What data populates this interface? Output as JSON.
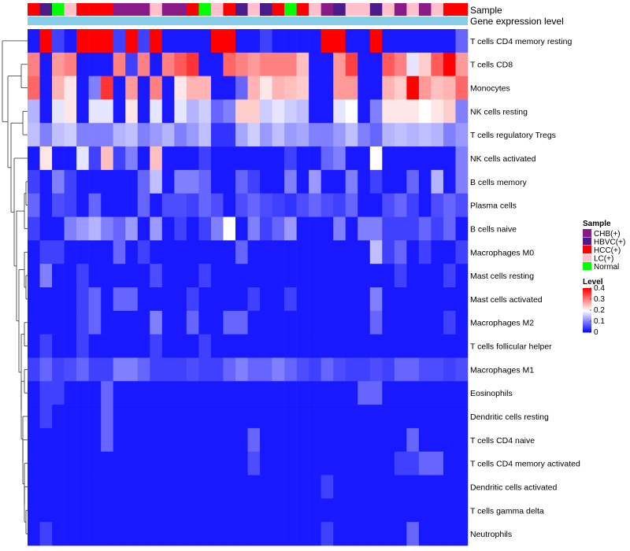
{
  "chart_data": {
    "type": "heatmap",
    "title": "",
    "annotation_track_labels": [
      "Sample",
      "Gene expression level"
    ],
    "row_labels": [
      "T cells CD4 memory resting",
      "T cells CD8",
      "Monocytes",
      "NK cells resting",
      "T cells regulatory  Tregs",
      "NK cells activated",
      "B cells memory",
      "Plasma cells",
      "B cells naive",
      "Macrophages M0",
      "Mast cells resting",
      "Mast cells activated",
      "Macrophages M2",
      "T cells follicular helper",
      "Macrophages M1",
      "Eosinophils",
      "Dendritic cells resting",
      "T cells CD4 naive",
      "T cells CD4 memory activated",
      "Dendritic cells activated",
      "T cells gamma delta",
      "Neutrophils"
    ],
    "sample_groups": [
      "HCC(+)",
      "HBVC(+)",
      "Normal",
      "LC(+)",
      "HCC(+)",
      "HCC(+)",
      "HCC(+)",
      "CHB(+)",
      "CHB(+)",
      "CHB(+)",
      "LC(+)",
      "CHB(+)",
      "CHB(+)",
      "HCC(+)",
      "Normal",
      "LC(+)",
      "HCC(+)",
      "HBVC(+)",
      "LC(+)",
      "HBVC(+)",
      "HCC(+)",
      "Normal",
      "HCC(+)",
      "LC(+)",
      "CHB(+)",
      "HBVC(+)",
      "LC(+)",
      "LC(+)",
      "HBVC(+)",
      "LC(+)",
      "CHB(+)",
      "LC(+)",
      "CHB(+)",
      "LC(+)",
      "HCC(+)",
      "HCC(+)"
    ],
    "values": [
      [
        0.02,
        0.4,
        0.05,
        0.02,
        0.4,
        0.4,
        0.4,
        0.05,
        0.4,
        0.05,
        0.4,
        0.02,
        0.02,
        0.02,
        0.02,
        0.4,
        0.4,
        0.02,
        0.02,
        0.05,
        0.02,
        0.02,
        0.02,
        0.02,
        0.4,
        0.4,
        0.02,
        0.02,
        0.4,
        0.02,
        0.02,
        0.02,
        0.02,
        0.02,
        0.02,
        0.08
      ],
      [
        0.3,
        0.02,
        0.28,
        0.3,
        0.02,
        0.02,
        0.02,
        0.3,
        0.05,
        0.3,
        0.02,
        0.3,
        0.33,
        0.36,
        0.02,
        0.02,
        0.32,
        0.3,
        0.28,
        0.3,
        0.3,
        0.3,
        0.25,
        0.02,
        0.02,
        0.28,
        0.35,
        0.02,
        0.02,
        0.33,
        0.3,
        0.18,
        0.24,
        0.33,
        0.4,
        0.28
      ],
      [
        0.32,
        0.02,
        0.26,
        0.22,
        0.02,
        0.1,
        0.36,
        0.02,
        0.28,
        0.02,
        0.3,
        0.02,
        0.22,
        0.26,
        0.26,
        0.02,
        0.02,
        0.08,
        0.26,
        0.22,
        0.26,
        0.25,
        0.24,
        0.02,
        0.02,
        0.28,
        0.28,
        0.02,
        0.02,
        0.26,
        0.24,
        0.4,
        0.28,
        0.25,
        0.26,
        0.32
      ],
      [
        0.14,
        0.02,
        0.18,
        0.22,
        0.02,
        0.18,
        0.18,
        0.02,
        0.22,
        0.02,
        0.18,
        0.02,
        0.18,
        0.14,
        0.16,
        0.08,
        0.1,
        0.24,
        0.24,
        0.16,
        0.18,
        0.16,
        0.15,
        0.02,
        0.02,
        0.18,
        0.2,
        0.02,
        0.1,
        0.22,
        0.22,
        0.22,
        0.2,
        0.22,
        0.24,
        0.1
      ],
      [
        0.15,
        0.1,
        0.15,
        0.16,
        0.1,
        0.1,
        0.1,
        0.14,
        0.15,
        0.1,
        0.12,
        0.14,
        0.1,
        0.12,
        0.15,
        0.04,
        0.04,
        0.13,
        0.16,
        0.12,
        0.15,
        0.12,
        0.13,
        0.1,
        0.1,
        0.12,
        0.15,
        0.1,
        0.08,
        0.14,
        0.15,
        0.14,
        0.15,
        0.14,
        0.1,
        0.12
      ],
      [
        0.02,
        0.22,
        0.02,
        0.02,
        0.18,
        0.05,
        0.25,
        0.05,
        0.1,
        0.02,
        0.25,
        0.02,
        0.02,
        0.02,
        0.05,
        0.02,
        0.02,
        0.02,
        0.02,
        0.02,
        0.02,
        0.05,
        0.02,
        0.02,
        0.08,
        0.1,
        0.02,
        0.02,
        0.2,
        0.02,
        0.02,
        0.02,
        0.02,
        0.02,
        0.02,
        0.1
      ],
      [
        0.05,
        0.02,
        0.1,
        0.05,
        0.02,
        0.02,
        0.02,
        0.02,
        0.02,
        0.08,
        0.15,
        0.02,
        0.1,
        0.1,
        0.08,
        0.02,
        0.02,
        0.08,
        0.05,
        0.02,
        0.02,
        0.1,
        0.02,
        0.12,
        0.02,
        0.02,
        0.1,
        0.02,
        0.05,
        0.02,
        0.02,
        0.08,
        0.02,
        0.14,
        0.02,
        0.1
      ],
      [
        0.08,
        0.02,
        0.06,
        0.05,
        0.02,
        0.08,
        0.02,
        0.02,
        0.02,
        0.08,
        0.02,
        0.06,
        0.06,
        0.05,
        0.08,
        0.06,
        0.02,
        0.06,
        0.08,
        0.06,
        0.05,
        0.04,
        0.06,
        0.08,
        0.06,
        0.05,
        0.08,
        0.02,
        0.02,
        0.06,
        0.08,
        0.05,
        0.02,
        0.06,
        0.08,
        0.06
      ],
      [
        0.05,
        0.02,
        0.02,
        0.1,
        0.12,
        0.14,
        0.1,
        0.08,
        0.12,
        0.02,
        0.12,
        0.02,
        0.05,
        0.02,
        0.05,
        0.1,
        0.2,
        0.02,
        0.1,
        0.05,
        0.08,
        0.12,
        0.02,
        0.02,
        0.02,
        0.1,
        0.02,
        0.1,
        0.1,
        0.05,
        0.05,
        0.05,
        0.08,
        0.05,
        0.08,
        0.02
      ],
      [
        0.02,
        0.05,
        0.05,
        0.02,
        0.02,
        0.02,
        0.02,
        0.08,
        0.02,
        0.05,
        0.02,
        0.02,
        0.02,
        0.02,
        0.02,
        0.02,
        0.02,
        0.08,
        0.02,
        0.02,
        0.02,
        0.02,
        0.02,
        0.02,
        0.02,
        0.02,
        0.02,
        0.02,
        0.15,
        0.05,
        0.08,
        0.02,
        0.05,
        0.02,
        0.02,
        0.05
      ],
      [
        0.02,
        0.1,
        0.02,
        0.02,
        0.05,
        0.02,
        0.02,
        0.02,
        0.02,
        0.02,
        0.06,
        0.02,
        0.02,
        0.02,
        0.05,
        0.02,
        0.02,
        0.02,
        0.02,
        0.02,
        0.02,
        0.02,
        0.02,
        0.02,
        0.02,
        0.02,
        0.02,
        0.02,
        0.02,
        0.02,
        0.05,
        0.02,
        0.02,
        0.02,
        0.05,
        0.02
      ],
      [
        0.02,
        0.02,
        0.02,
        0.02,
        0.05,
        0.08,
        0.02,
        0.08,
        0.08,
        0.02,
        0.02,
        0.02,
        0.02,
        0.05,
        0.02,
        0.02,
        0.02,
        0.02,
        0.05,
        0.02,
        0.02,
        0.05,
        0.02,
        0.02,
        0.02,
        0.02,
        0.02,
        0.02,
        0.1,
        0.02,
        0.02,
        0.02,
        0.02,
        0.02,
        0.02,
        0.02
      ],
      [
        0.02,
        0.02,
        0.02,
        0.02,
        0.05,
        0.08,
        0.02,
        0.02,
        0.02,
        0.02,
        0.1,
        0.02,
        0.02,
        0.08,
        0.02,
        0.02,
        0.08,
        0.08,
        0.02,
        0.02,
        0.02,
        0.02,
        0.02,
        0.02,
        0.02,
        0.02,
        0.02,
        0.02,
        0.08,
        0.02,
        0.02,
        0.02,
        0.02,
        0.02,
        0.05,
        0.02
      ],
      [
        0.02,
        0.05,
        0.02,
        0.02,
        0.05,
        0.02,
        0.02,
        0.02,
        0.02,
        0.02,
        0.05,
        0.02,
        0.02,
        0.02,
        0.05,
        0.02,
        0.02,
        0.02,
        0.02,
        0.02,
        0.02,
        0.02,
        0.02,
        0.02,
        0.02,
        0.02,
        0.02,
        0.02,
        0.02,
        0.02,
        0.02,
        0.02,
        0.02,
        0.02,
        0.02,
        0.02
      ],
      [
        0.05,
        0.08,
        0.05,
        0.06,
        0.08,
        0.05,
        0.05,
        0.1,
        0.1,
        0.08,
        0.05,
        0.05,
        0.05,
        0.06,
        0.05,
        0.05,
        0.08,
        0.1,
        0.08,
        0.08,
        0.1,
        0.08,
        0.06,
        0.05,
        0.08,
        0.06,
        0.05,
        0.05,
        0.06,
        0.05,
        0.08,
        0.08,
        0.06,
        0.06,
        0.05,
        0.06
      ],
      [
        0.02,
        0.05,
        0.05,
        0.02,
        0.02,
        0.02,
        0.08,
        0.02,
        0.02,
        0.02,
        0.02,
        0.02,
        0.02,
        0.02,
        0.02,
        0.02,
        0.02,
        0.02,
        0.02,
        0.02,
        0.02,
        0.02,
        0.02,
        0.02,
        0.02,
        0.02,
        0.02,
        0.08,
        0.08,
        0.02,
        0.02,
        0.02,
        0.02,
        0.02,
        0.02,
        0.02
      ],
      [
        0.02,
        0.05,
        0.02,
        0.02,
        0.02,
        0.02,
        0.08,
        0.02,
        0.02,
        0.02,
        0.02,
        0.02,
        0.02,
        0.02,
        0.02,
        0.02,
        0.02,
        0.02,
        0.02,
        0.02,
        0.02,
        0.02,
        0.02,
        0.02,
        0.02,
        0.02,
        0.02,
        0.02,
        0.02,
        0.02,
        0.02,
        0.02,
        0.02,
        0.02,
        0.02,
        0.02
      ],
      [
        0.02,
        0.02,
        0.02,
        0.02,
        0.02,
        0.02,
        0.08,
        0.02,
        0.02,
        0.02,
        0.02,
        0.02,
        0.02,
        0.02,
        0.02,
        0.02,
        0.02,
        0.02,
        0.08,
        0.02,
        0.02,
        0.02,
        0.02,
        0.02,
        0.02,
        0.02,
        0.02,
        0.02,
        0.02,
        0.02,
        0.02,
        0.08,
        0.02,
        0.02,
        0.02,
        0.02
      ],
      [
        0.02,
        0.02,
        0.02,
        0.02,
        0.02,
        0.02,
        0.02,
        0.02,
        0.02,
        0.02,
        0.02,
        0.02,
        0.02,
        0.02,
        0.02,
        0.02,
        0.02,
        0.02,
        0.06,
        0.02,
        0.02,
        0.02,
        0.02,
        0.02,
        0.02,
        0.02,
        0.02,
        0.02,
        0.02,
        0.02,
        0.05,
        0.05,
        0.08,
        0.08,
        0.02,
        0.02
      ],
      [
        0.02,
        0.02,
        0.02,
        0.02,
        0.02,
        0.02,
        0.02,
        0.02,
        0.02,
        0.02,
        0.02,
        0.02,
        0.02,
        0.02,
        0.02,
        0.02,
        0.02,
        0.02,
        0.02,
        0.02,
        0.02,
        0.02,
        0.02,
        0.02,
        0.05,
        0.02,
        0.02,
        0.02,
        0.02,
        0.02,
        0.02,
        0.02,
        0.02,
        0.02,
        0.02,
        0.02
      ],
      [
        0.02,
        0.02,
        0.02,
        0.02,
        0.02,
        0.02,
        0.02,
        0.02,
        0.02,
        0.02,
        0.02,
        0.02,
        0.02,
        0.02,
        0.02,
        0.02,
        0.02,
        0.02,
        0.02,
        0.02,
        0.02,
        0.02,
        0.02,
        0.02,
        0.02,
        0.02,
        0.02,
        0.02,
        0.02,
        0.02,
        0.02,
        0.02,
        0.02,
        0.02,
        0.02,
        0.02
      ],
      [
        0.02,
        0.05,
        0.02,
        0.02,
        0.02,
        0.02,
        0.02,
        0.02,
        0.02,
        0.02,
        0.02,
        0.02,
        0.02,
        0.02,
        0.02,
        0.02,
        0.02,
        0.02,
        0.02,
        0.02,
        0.02,
        0.02,
        0.02,
        0.02,
        0.05,
        0.02,
        0.02,
        0.02,
        0.02,
        0.02,
        0.02,
        0.08,
        0.02,
        0.02,
        0.02,
        0.02
      ]
    ],
    "color_scale": {
      "stops": [
        0,
        0.2,
        0.4
      ],
      "colors": [
        "#0000ff",
        "#ffffff",
        "#ff0000"
      ]
    },
    "legend": {
      "sample": {
        "title": "Sample",
        "entries": [
          {
            "label": "CHB(+)",
            "color": "#8b1a89"
          },
          {
            "label": "HBVC(+)",
            "color": "#4b1a8b"
          },
          {
            "label": "HCC(+)",
            "color": "#ff0000"
          },
          {
            "label": "LC(+)",
            "color": "#ffc0cb"
          },
          {
            "label": "Normal",
            "color": "#00ff00"
          }
        ]
      },
      "level": {
        "title": "Level",
        "ticks": [
          "0.4",
          "0.3",
          "0.2",
          "0.1",
          "0"
        ],
        "tick_values": [
          0.4,
          0.3,
          0.2,
          0.1,
          0
        ]
      }
    },
    "gene_expression_bar_color": "#87ceeb",
    "dendrogram": "row clustering tree on left"
  }
}
